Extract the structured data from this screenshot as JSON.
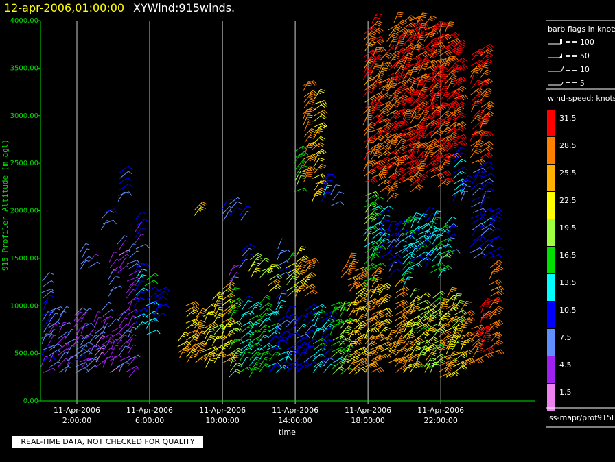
{
  "header": {
    "date_label": "12-apr-2006,01:00:00",
    "title": "XYWind:915winds."
  },
  "qc_notice": "REAL-TIME DATA, NOT CHECKED FOR QUALITY",
  "source_label": "iss-mapr/prof915l",
  "colors": {
    "background": "#000000",
    "axis": "#00e000",
    "grid": "#ffffff",
    "date_title": "#ffff00"
  },
  "chart_data": {
    "type": "scatter",
    "subtype": "wind barbs",
    "ylabel": "915 Profiler Altitude (m agl)",
    "xlabel": "time",
    "ylim": [
      0,
      4000
    ],
    "yticks": [
      "0.00",
      "500.00",
      "1000.00",
      "1500.00",
      "2000.00",
      "2500.00",
      "3000.00",
      "3500.00",
      "4000.00"
    ],
    "xlim_hours": [
      0,
      27.2
    ],
    "xticks": [
      {
        "hour": 2,
        "date": "11-Apr-2006",
        "time": "2:00:00"
      },
      {
        "hour": 6,
        "date": "11-Apr-2006",
        "time": "6:00:00"
      },
      {
        "hour": 10,
        "date": "11-Apr-2006",
        "time": "10:00:00"
      },
      {
        "hour": 14,
        "date": "11-Apr-2006",
        "time": "14:00:00"
      },
      {
        "hour": 18,
        "date": "11-Apr-2006",
        "time": "18:00:00"
      },
      {
        "hour": 22,
        "date": "11-Apr-2006",
        "time": "22:00:00"
      }
    ],
    "grid": "vertical lines at x ticks",
    "barb_legend": {
      "title": "barb flags in knots",
      "entries": [
        "== 100",
        "== 50",
        "== 10",
        "== 5"
      ]
    },
    "colorbar": {
      "title": "wind-speed: knots",
      "levels": [
        "31.5",
        "28.5",
        "25.5",
        "22.5",
        "19.5",
        "16.5",
        "13.5",
        "10.5",
        "7.5",
        "4.5",
        "1.5"
      ],
      "colors": [
        "#ff0000",
        "#ff8000",
        "#ffb000",
        "#ffff00",
        "#a0ff40",
        "#00e000",
        "#00ffff",
        "#0000ff",
        "#6090ff",
        "#a020f0",
        "#ee82ee"
      ]
    },
    "columns": [
      {
        "hour": 0.1,
        "ranges": [
          [
            300,
            1300,
            8
          ]
        ]
      },
      {
        "hour": 0.5,
        "ranges": [
          [
            350,
            1000,
            6
          ]
        ]
      },
      {
        "hour": 1.0,
        "ranges": [
          [
            300,
            950,
            6
          ]
        ]
      },
      {
        "hour": 1.4,
        "ranges": [
          [
            300,
            700,
            7
          ]
        ]
      },
      {
        "hour": 1.9,
        "ranges": [
          [
            300,
            900,
            7
          ]
        ]
      },
      {
        "hour": 2.2,
        "ranges": [
          [
            350,
            900,
            6
          ],
          [
            1380,
            1600,
            6
          ]
        ]
      },
      {
        "hour": 2.6,
        "ranges": [
          [
            300,
            700,
            6
          ],
          [
            1400,
            1500,
            6
          ]
        ]
      },
      {
        "hour": 3.0,
        "ranges": [
          [
            350,
            850,
            5
          ]
        ]
      },
      {
        "hour": 3.4,
        "ranges": [
          [
            350,
            1000,
            6
          ],
          [
            1800,
            2000,
            8
          ]
        ]
      },
      {
        "hour": 3.8,
        "ranges": [
          [
            300,
            800,
            5
          ],
          [
            1100,
            1500,
            6
          ]
        ]
      },
      {
        "hour": 4.3,
        "ranges": [
          [
            300,
            900,
            6
          ],
          [
            1350,
            1700,
            5
          ],
          [
            2100,
            2400,
            9
          ]
        ]
      },
      {
        "hour": 4.8,
        "ranges": [
          [
            250,
            800,
            5
          ],
          [
            900,
            1600,
            6
          ]
        ]
      },
      {
        "hour": 5.2,
        "ranges": [
          [
            750,
            1450,
            12
          ],
          [
            1600,
            1900,
            8
          ]
        ]
      },
      {
        "hour": 5.8,
        "ranges": [
          [
            700,
            1100,
            12
          ],
          [
            1150,
            1300,
            14
          ]
        ]
      },
      {
        "hour": 6.3,
        "ranges": [
          [
            850,
            1150,
            9
          ]
        ]
      },
      {
        "hour": 7.6,
        "ranges": [
          [
            450,
            650,
            24
          ]
        ]
      },
      {
        "hour": 8.0,
        "ranges": [
          [
            400,
            1000,
            25
          ]
        ]
      },
      {
        "hour": 8.5,
        "ranges": [
          [
            400,
            900,
            26
          ],
          [
            1950,
            2050,
            25
          ]
        ]
      },
      {
        "hour": 9.0,
        "ranges": [
          [
            350,
            1000,
            24
          ]
        ]
      },
      {
        "hour": 9.5,
        "ranges": [
          [
            400,
            1100,
            23
          ]
        ]
      },
      {
        "hour": 10.0,
        "ranges": [
          [
            400,
            1200,
            24
          ],
          [
            1900,
            2050,
            8
          ]
        ]
      },
      {
        "hour": 10.4,
        "ranges": [
          [
            250,
            1100,
            18
          ],
          [
            1200,
            1400,
            6
          ],
          [
            1950,
            2100,
            8
          ]
        ]
      },
      {
        "hour": 11.0,
        "ranges": [
          [
            300,
            1050,
            14
          ],
          [
            1400,
            1600,
            8
          ],
          [
            1900,
            2000,
            8
          ]
        ]
      },
      {
        "hour": 11.5,
        "ranges": [
          [
            250,
            1000,
            15
          ],
          [
            1300,
            1500,
            22
          ]
        ]
      },
      {
        "hour": 12.0,
        "ranges": [
          [
            300,
            1050,
            16
          ],
          [
            1300,
            1450,
            20
          ]
        ]
      },
      {
        "hour": 12.5,
        "ranges": [
          [
            300,
            900,
            13
          ],
          [
            1150,
            1400,
            22
          ]
        ]
      },
      {
        "hour": 13.0,
        "ranges": [
          [
            300,
            1100,
            11
          ],
          [
            1300,
            1650,
            8
          ]
        ]
      },
      {
        "hour": 13.5,
        "ranges": [
          [
            300,
            900,
            10
          ],
          [
            1100,
            1500,
            20
          ]
        ]
      },
      {
        "hour": 14.0,
        "ranges": [
          [
            300,
            850,
            11
          ],
          [
            1100,
            1550,
            24
          ],
          [
            2200,
            2650,
            18
          ]
        ]
      },
      {
        "hour": 14.5,
        "ranges": [
          [
            350,
            1000,
            10
          ],
          [
            1100,
            1500,
            26
          ],
          [
            2300,
            3350,
            27
          ]
        ]
      },
      {
        "hour": 15.0,
        "ranges": [
          [
            300,
            1000,
            14
          ],
          [
            2100,
            3200,
            24
          ]
        ]
      },
      {
        "hour": 15.5,
        "ranges": [
          [
            300,
            950,
            11
          ],
          [
            2100,
            2350,
            12
          ]
        ]
      },
      {
        "hour": 16.0,
        "ranges": [
          [
            280,
            1000,
            17
          ],
          [
            2050,
            2200,
            8
          ]
        ]
      },
      {
        "hour": 16.5,
        "ranges": [
          [
            280,
            1050,
            18
          ],
          [
            1300,
            1400,
            28
          ]
        ]
      },
      {
        "hour": 16.9,
        "ranges": [
          [
            280,
            1050,
            24
          ],
          [
            1150,
            1450,
            27
          ]
        ]
      },
      {
        "hour": 17.3,
        "ranges": [
          [
            280,
            1200,
            24
          ],
          [
            1250,
            1400,
            28
          ]
        ]
      },
      {
        "hour": 17.8,
        "ranges": [
          [
            300,
            1100,
            26
          ],
          [
            1200,
            2200,
            17
          ],
          [
            2300,
            3900,
            29
          ]
        ]
      },
      {
        "hour": 18.2,
        "ranges": [
          [
            300,
            1350,
            26
          ],
          [
            1400,
            2100,
            15
          ],
          [
            2350,
            4000,
            30
          ]
        ]
      },
      {
        "hour": 18.6,
        "ranges": [
          [
            450,
            1200,
            24
          ],
          [
            1500,
            2000,
            12
          ],
          [
            2200,
            3600,
            28
          ]
        ]
      },
      {
        "hour": 19.1,
        "ranges": [
          [
            400,
            650,
            26
          ],
          [
            1300,
            1800,
            9
          ],
          [
            2100,
            3950,
            29
          ]
        ]
      },
      {
        "hour": 19.5,
        "ranges": [
          [
            300,
            1200,
            27
          ],
          [
            1550,
            1850,
            10
          ],
          [
            2300,
            4000,
            30
          ]
        ]
      },
      {
        "hour": 19.9,
        "ranges": [
          [
            300,
            1000,
            25
          ],
          [
            1200,
            1900,
            15
          ],
          [
            2300,
            4000,
            30
          ]
        ]
      },
      {
        "hour": 20.3,
        "ranges": [
          [
            300,
            1100,
            23
          ],
          [
            1400,
            1900,
            12
          ],
          [
            2200,
            4000,
            30
          ]
        ]
      },
      {
        "hour": 20.7,
        "ranges": [
          [
            350,
            1100,
            20
          ],
          [
            1450,
            1900,
            14
          ],
          [
            2300,
            4000,
            30
          ]
        ]
      },
      {
        "hour": 21.1,
        "ranges": [
          [
            300,
            1000,
            22
          ],
          [
            1400,
            1950,
            12
          ],
          [
            2400,
            4000,
            30
          ]
        ]
      },
      {
        "hour": 21.5,
        "ranges": [
          [
            300,
            1100,
            19
          ],
          [
            1350,
            1900,
            15
          ],
          [
            2350,
            3950,
            30
          ]
        ]
      },
      {
        "hour": 21.9,
        "ranges": [
          [
            250,
            1000,
            26
          ],
          [
            1300,
            1800,
            16
          ],
          [
            2250,
            3950,
            30
          ]
        ]
      },
      {
        "hour": 22.3,
        "ranges": [
          [
            250,
            1100,
            24
          ],
          [
            1550,
            1900,
            10
          ],
          [
            2500,
            3900,
            30
          ]
        ]
      },
      {
        "hour": 22.7,
        "ranges": [
          [
            300,
            1050,
            20
          ],
          [
            2100,
            2600,
            12
          ],
          [
            2700,
            3750,
            31
          ]
        ]
      },
      {
        "hour": 23.1,
        "ranges": [
          [
            350,
            1000,
            26
          ],
          [
            2100,
            2300,
            8
          ]
        ]
      },
      {
        "hour": 23.7,
        "ranges": [
          [
            400,
            800,
            30
          ],
          [
            1500,
            2400,
            9
          ],
          [
            2500,
            3650,
            30
          ]
        ]
      },
      {
        "hour": 24.2,
        "ranges": [
          [
            450,
            1000,
            31
          ],
          [
            1500,
            2500,
            10
          ],
          [
            2550,
            3700,
            30
          ]
        ]
      },
      {
        "hour": 24.7,
        "ranges": [
          [
            500,
            1400,
            28
          ],
          [
            1500,
            2000,
            10
          ]
        ]
      }
    ]
  }
}
